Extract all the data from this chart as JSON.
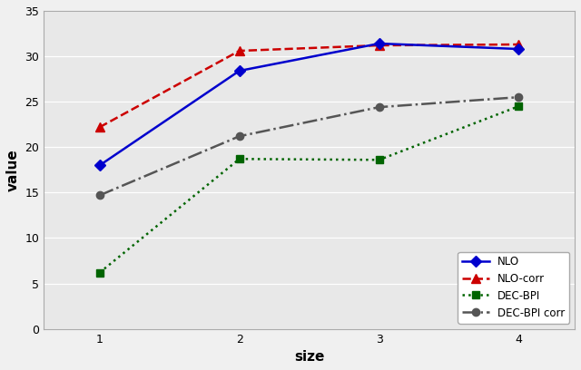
{
  "x": [
    1,
    2,
    3,
    4
  ],
  "series": [
    {
      "label": "NLO",
      "values": [
        18.0,
        28.4,
        31.4,
        30.8
      ],
      "color": "#0000CD",
      "linestyle": "-",
      "marker": "D",
      "markersize": 6,
      "linewidth": 1.8,
      "zorder": 5,
      "markerfacecolor": "#0000CD",
      "markeredgecolor": "#0000CD"
    },
    {
      "label": "NLO-corr",
      "values": [
        22.2,
        30.6,
        31.2,
        31.3
      ],
      "color": "#CC0000",
      "linestyle": "--",
      "marker": "^",
      "markersize": 7,
      "linewidth": 1.8,
      "zorder": 4,
      "markerfacecolor": "#CC0000",
      "markeredgecolor": "#CC0000"
    },
    {
      "label": "· DEC-BPI",
      "values": [
        6.2,
        18.7,
        18.6,
        24.5
      ],
      "color": "#006400",
      "linestyle": ":",
      "marker": "s",
      "markersize": 6,
      "linewidth": 1.8,
      "zorder": 3,
      "markerfacecolor": "#006400",
      "markeredgecolor": "#006400"
    },
    {
      "label": "· DEC-BPI corr",
      "values": [
        14.7,
        21.2,
        24.4,
        25.5
      ],
      "color": "#555555",
      "linestyle": "-.",
      "marker": "o",
      "markersize": 6,
      "linewidth": 1.8,
      "zorder": 3,
      "markerfacecolor": "#555555",
      "markeredgecolor": "#555555"
    }
  ],
  "xlabel": "size",
  "ylabel": "value",
  "xlim": [
    0.6,
    4.4
  ],
  "ylim": [
    0,
    35
  ],
  "yticks": [
    0,
    5,
    10,
    15,
    20,
    25,
    30,
    35
  ],
  "xticks": [
    1,
    2,
    3,
    4
  ],
  "legend_loc": "lower right",
  "plot_bg_color": "#e8e8e8",
  "fig_bg_color": "#f0f0f0",
  "grid_color": "#ffffff",
  "fig_width": 6.4,
  "fig_height": 4.08,
  "dpi": 100
}
